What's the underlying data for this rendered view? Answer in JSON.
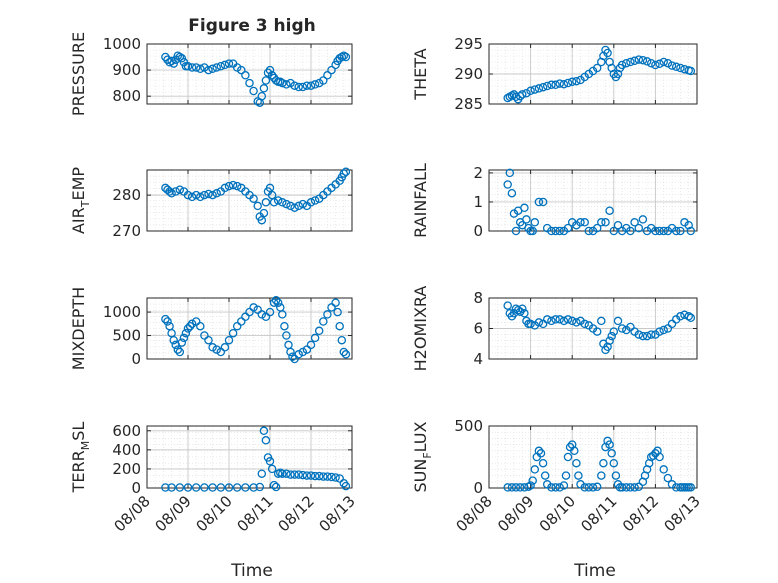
{
  "figure": {
    "title": "Figure 3 high",
    "xlabel": "Time",
    "xticks": [
      "08/08",
      "08/09",
      "08/10",
      "08/11",
      "08/12",
      "08/13"
    ],
    "marker_color": "#0072BD"
  },
  "chart_data": [
    {
      "type": "scatter",
      "id": "pressure",
      "ylabel": "PRESSURE",
      "ylabel_sub": "",
      "ylim": [
        770,
        1000
      ],
      "yticks": [
        800,
        900,
        1000
      ],
      "xlim": [
        0,
        5
      ],
      "grid": true,
      "x": [
        0.45,
        0.5,
        0.55,
        0.6,
        0.65,
        0.7,
        0.75,
        0.8,
        0.85,
        0.9,
        0.95,
        1.0,
        1.1,
        1.2,
        1.3,
        1.4,
        1.5,
        1.6,
        1.7,
        1.8,
        1.9,
        2.0,
        2.1,
        2.2,
        2.3,
        2.4,
        2.5,
        2.6,
        2.7,
        2.75,
        2.8,
        2.85,
        2.9,
        2.95,
        3.0,
        3.05,
        3.1,
        3.15,
        3.2,
        3.25,
        3.3,
        3.4,
        3.5,
        3.6,
        3.7,
        3.8,
        3.9,
        4.0,
        4.1,
        4.2,
        4.3,
        4.4,
        4.5,
        4.6,
        4.65,
        4.7,
        4.75,
        4.8,
        4.85
      ],
      "y": [
        950,
        940,
        930,
        935,
        925,
        940,
        955,
        950,
        945,
        930,
        915,
        915,
        910,
        910,
        905,
        910,
        900,
        905,
        910,
        915,
        920,
        925,
        925,
        910,
        900,
        880,
        850,
        820,
        780,
        775,
        800,
        830,
        860,
        890,
        900,
        880,
        870,
        860,
        855,
        855,
        850,
        845,
        850,
        840,
        835,
        835,
        840,
        840,
        845,
        850,
        860,
        880,
        900,
        920,
        935,
        945,
        950,
        955,
        950
      ]
    },
    {
      "type": "scatter",
      "id": "theta",
      "ylabel": "THETA",
      "ylabel_sub": "",
      "ylim": [
        285,
        295
      ],
      "yticks": [
        285,
        290,
        295
      ],
      "xlim": [
        0,
        5
      ],
      "grid": true,
      "x": [
        0.45,
        0.5,
        0.55,
        0.6,
        0.65,
        0.7,
        0.75,
        0.8,
        0.9,
        1.0,
        1.1,
        1.2,
        1.3,
        1.4,
        1.5,
        1.6,
        1.7,
        1.8,
        1.9,
        2.0,
        2.1,
        2.2,
        2.3,
        2.4,
        2.5,
        2.6,
        2.7,
        2.75,
        2.8,
        2.85,
        2.9,
        2.95,
        3.0,
        3.05,
        3.1,
        3.15,
        3.2,
        3.3,
        3.4,
        3.5,
        3.6,
        3.7,
        3.8,
        3.9,
        4.0,
        4.1,
        4.2,
        4.3,
        4.4,
        4.5,
        4.6,
        4.7,
        4.8,
        4.85
      ],
      "y": [
        286,
        286.2,
        286.4,
        286.6,
        286.2,
        285.8,
        286.3,
        286.6,
        286.8,
        287.2,
        287.4,
        287.6,
        287.8,
        288,
        288.2,
        288.2,
        288.4,
        288.3,
        288.5,
        288.7,
        288.8,
        289,
        289.5,
        290,
        290.5,
        291,
        292,
        293,
        294,
        293.5,
        292,
        291,
        290,
        289.5,
        290,
        291,
        291.5,
        291.8,
        292,
        292.2,
        292.4,
        292.3,
        292.1,
        291.8,
        291.5,
        291.7,
        292,
        291.8,
        291.4,
        291.2,
        291,
        290.8,
        290.6,
        290.5
      ]
    },
    {
      "type": "scatter",
      "id": "air_temp",
      "ylabel": "AIR",
      "ylabel_sub": "T",
      "ylabel_rest": "EMP",
      "ylim": [
        270,
        287
      ],
      "yticks": [
        270,
        280
      ],
      "xlim": [
        0,
        5
      ],
      "grid": true,
      "x": [
        0.45,
        0.5,
        0.55,
        0.6,
        0.7,
        0.8,
        0.9,
        1.0,
        1.1,
        1.2,
        1.3,
        1.4,
        1.5,
        1.6,
        1.7,
        1.8,
        1.9,
        2.0,
        2.1,
        2.2,
        2.3,
        2.4,
        2.5,
        2.6,
        2.7,
        2.75,
        2.8,
        2.85,
        2.9,
        2.95,
        3.0,
        3.05,
        3.1,
        3.2,
        3.3,
        3.4,
        3.5,
        3.6,
        3.7,
        3.8,
        3.9,
        4.0,
        4.1,
        4.2,
        4.3,
        4.4,
        4.5,
        4.6,
        4.7,
        4.75,
        4.8,
        4.85
      ],
      "y": [
        282,
        281.5,
        281,
        280.5,
        281,
        281.5,
        281,
        280,
        279.5,
        280,
        279.5,
        280,
        280.3,
        280,
        280.5,
        281,
        282,
        282.5,
        282.8,
        282.5,
        282,
        281,
        280,
        279,
        277,
        274,
        273,
        275,
        278,
        281,
        282,
        280,
        278,
        278.5,
        278,
        277.5,
        277,
        276.5,
        277,
        277.5,
        277,
        278,
        278.5,
        279,
        280,
        281,
        282,
        283,
        284,
        285,
        286,
        286.5
      ]
    },
    {
      "type": "scatter",
      "id": "rainfall",
      "ylabel": "RAINFALL",
      "ylabel_sub": "",
      "ylim": [
        0,
        2.1
      ],
      "yticks": [
        0,
        1,
        2
      ],
      "xlim": [
        0,
        5
      ],
      "grid": true,
      "x": [
        0.45,
        0.5,
        0.55,
        0.6,
        0.65,
        0.7,
        0.75,
        0.8,
        0.85,
        0.9,
        0.95,
        1.0,
        1.05,
        1.1,
        1.2,
        1.3,
        1.4,
        1.5,
        1.6,
        1.7,
        1.8,
        1.9,
        2.0,
        2.1,
        2.2,
        2.3,
        2.4,
        2.5,
        2.6,
        2.7,
        2.8,
        2.9,
        3.0,
        3.1,
        3.2,
        3.3,
        3.4,
        3.5,
        3.6,
        3.7,
        3.8,
        3.9,
        4.0,
        4.1,
        4.2,
        4.3,
        4.4,
        4.5,
        4.6,
        4.7,
        4.8,
        4.85
      ],
      "y": [
        1.6,
        2.0,
        1.3,
        0.6,
        0.0,
        0.7,
        0.3,
        0.2,
        0.8,
        0.4,
        0.1,
        0.0,
        0.0,
        0.3,
        1.0,
        1.0,
        0.1,
        0.0,
        0.0,
        0.0,
        0.0,
        0.1,
        0.3,
        0.2,
        0.3,
        0.3,
        0.0,
        0.0,
        0.1,
        0.3,
        0.3,
        0.7,
        0.0,
        0.2,
        0.0,
        0.1,
        0.0,
        0.3,
        0.1,
        0.4,
        0.0,
        0.1,
        0.0,
        0.0,
        0.0,
        0.0,
        0.1,
        0.0,
        0.0,
        0.3,
        0.2,
        0.0
      ]
    },
    {
      "type": "scatter",
      "id": "mixdepth",
      "ylabel": "MIXDEPTH",
      "ylabel_sub": "",
      "ylim": [
        0,
        1300
      ],
      "yticks": [
        0,
        500,
        1000
      ],
      "xlim": [
        0,
        5
      ],
      "grid": true,
      "x": [
        0.45,
        0.5,
        0.55,
        0.6,
        0.65,
        0.7,
        0.75,
        0.8,
        0.85,
        0.9,
        0.95,
        1.0,
        1.05,
        1.1,
        1.2,
        1.3,
        1.4,
        1.5,
        1.6,
        1.7,
        1.8,
        1.9,
        2.0,
        2.1,
        2.2,
        2.3,
        2.4,
        2.5,
        2.6,
        2.7,
        2.8,
        2.9,
        3.0,
        3.1,
        3.15,
        3.2,
        3.25,
        3.3,
        3.35,
        3.4,
        3.45,
        3.5,
        3.55,
        3.6,
        3.7,
        3.8,
        3.9,
        4.0,
        4.1,
        4.2,
        4.3,
        4.4,
        4.5,
        4.6,
        4.65,
        4.7,
        4.75,
        4.8,
        4.85
      ],
      "y": [
        850,
        800,
        700,
        550,
        400,
        300,
        200,
        150,
        350,
        450,
        550,
        650,
        700,
        750,
        800,
        700,
        500,
        400,
        250,
        200,
        150,
        250,
        400,
        550,
        700,
        800,
        900,
        1000,
        1100,
        1050,
        950,
        900,
        1000,
        1200,
        1250,
        1200,
        1100,
        950,
        700,
        500,
        300,
        150,
        50,
        0,
        100,
        150,
        200,
        300,
        450,
        600,
        800,
        950,
        1100,
        1200,
        1000,
        700,
        400,
        150,
        100
      ]
    },
    {
      "type": "scatter",
      "id": "h2omixra",
      "ylabel": "H2OMIXRA",
      "ylabel_sub": "",
      "ylim": [
        4,
        8
      ],
      "yticks": [
        4,
        6,
        8
      ],
      "xlim": [
        0,
        5
      ],
      "grid": true,
      "x": [
        0.45,
        0.5,
        0.55,
        0.6,
        0.65,
        0.7,
        0.75,
        0.8,
        0.85,
        0.9,
        0.95,
        1.0,
        1.1,
        1.2,
        1.3,
        1.4,
        1.5,
        1.6,
        1.7,
        1.8,
        1.9,
        2.0,
        2.1,
        2.2,
        2.3,
        2.4,
        2.5,
        2.6,
        2.7,
        2.75,
        2.8,
        2.85,
        2.9,
        2.95,
        3.0,
        3.1,
        3.2,
        3.3,
        3.4,
        3.5,
        3.6,
        3.7,
        3.8,
        3.9,
        4.0,
        4.1,
        4.2,
        4.3,
        4.4,
        4.5,
        4.6,
        4.7,
        4.8,
        4.85
      ],
      "y": [
        7.5,
        7.0,
        6.8,
        7.0,
        7.3,
        7.2,
        7.1,
        7.3,
        7.0,
        6.5,
        6.3,
        6.3,
        6.2,
        6.4,
        6.3,
        6.6,
        6.5,
        6.6,
        6.6,
        6.5,
        6.6,
        6.5,
        6.4,
        6.5,
        6.3,
        6.2,
        6.0,
        5.8,
        6.5,
        5.0,
        4.6,
        4.8,
        5.2,
        5.5,
        5.8,
        6.5,
        6.0,
        5.9,
        6.1,
        5.8,
        5.6,
        5.5,
        5.5,
        5.6,
        5.6,
        5.8,
        5.9,
        6.0,
        6.3,
        6.6,
        6.8,
        6.9,
        6.8,
        6.7
      ]
    },
    {
      "type": "scatter",
      "id": "terr_msl",
      "ylabel": "TERR",
      "ylabel_sub": "M",
      "ylabel_rest": "SL",
      "ylim": [
        0,
        650
      ],
      "yticks": [
        0,
        200,
        400,
        600
      ],
      "xlim": [
        0,
        5
      ],
      "grid": true,
      "x": [
        0.45,
        0.6,
        0.8,
        1.0,
        1.2,
        1.4,
        1.6,
        1.8,
        2.0,
        2.2,
        2.4,
        2.6,
        2.75,
        2.8,
        2.85,
        2.9,
        2.95,
        3.0,
        3.05,
        3.1,
        3.15,
        3.2,
        3.25,
        3.3,
        3.4,
        3.5,
        3.6,
        3.7,
        3.8,
        3.9,
        4.0,
        4.1,
        4.2,
        4.3,
        4.4,
        4.5,
        4.6,
        4.7,
        4.8,
        4.85
      ],
      "y": [
        5,
        5,
        5,
        5,
        5,
        5,
        5,
        5,
        5,
        5,
        5,
        5,
        10,
        150,
        600,
        500,
        320,
        280,
        200,
        30,
        10,
        150,
        160,
        150,
        150,
        140,
        140,
        140,
        135,
        130,
        130,
        125,
        125,
        120,
        120,
        115,
        110,
        100,
        50,
        20
      ]
    },
    {
      "type": "scatter",
      "id": "sun_flux",
      "ylabel": "SUN",
      "ylabel_sub": "F",
      "ylabel_rest": "LUX",
      "ylim": [
        0,
        500
      ],
      "yticks": [
        0,
        500
      ],
      "xlim": [
        0,
        5
      ],
      "grid": true,
      "x": [
        0.45,
        0.55,
        0.65,
        0.75,
        0.85,
        0.95,
        1.0,
        1.05,
        1.1,
        1.15,
        1.2,
        1.25,
        1.3,
        1.35,
        1.4,
        1.5,
        1.6,
        1.7,
        1.8,
        1.85,
        1.9,
        1.95,
        2.0,
        2.05,
        2.1,
        2.15,
        2.2,
        2.3,
        2.4,
        2.5,
        2.6,
        2.7,
        2.75,
        2.8,
        2.85,
        2.9,
        2.95,
        3.0,
        3.05,
        3.1,
        3.15,
        3.2,
        3.3,
        3.4,
        3.5,
        3.6,
        3.7,
        3.75,
        3.8,
        3.85,
        3.9,
        3.95,
        4.0,
        4.05,
        4.1,
        4.2,
        4.3,
        4.4,
        4.5,
        4.6,
        4.65,
        4.7,
        4.75,
        4.8,
        4.85
      ],
      "y": [
        5,
        5,
        5,
        5,
        5,
        10,
        20,
        60,
        150,
        250,
        300,
        280,
        200,
        100,
        30,
        5,
        5,
        5,
        20,
        100,
        250,
        330,
        350,
        300,
        200,
        100,
        30,
        5,
        5,
        5,
        10,
        100,
        200,
        330,
        380,
        350,
        280,
        200,
        100,
        30,
        5,
        5,
        5,
        5,
        5,
        10,
        50,
        100,
        150,
        200,
        250,
        260,
        280,
        300,
        250,
        150,
        80,
        30,
        5,
        5,
        5,
        5,
        5,
        5,
        5
      ]
    }
  ]
}
